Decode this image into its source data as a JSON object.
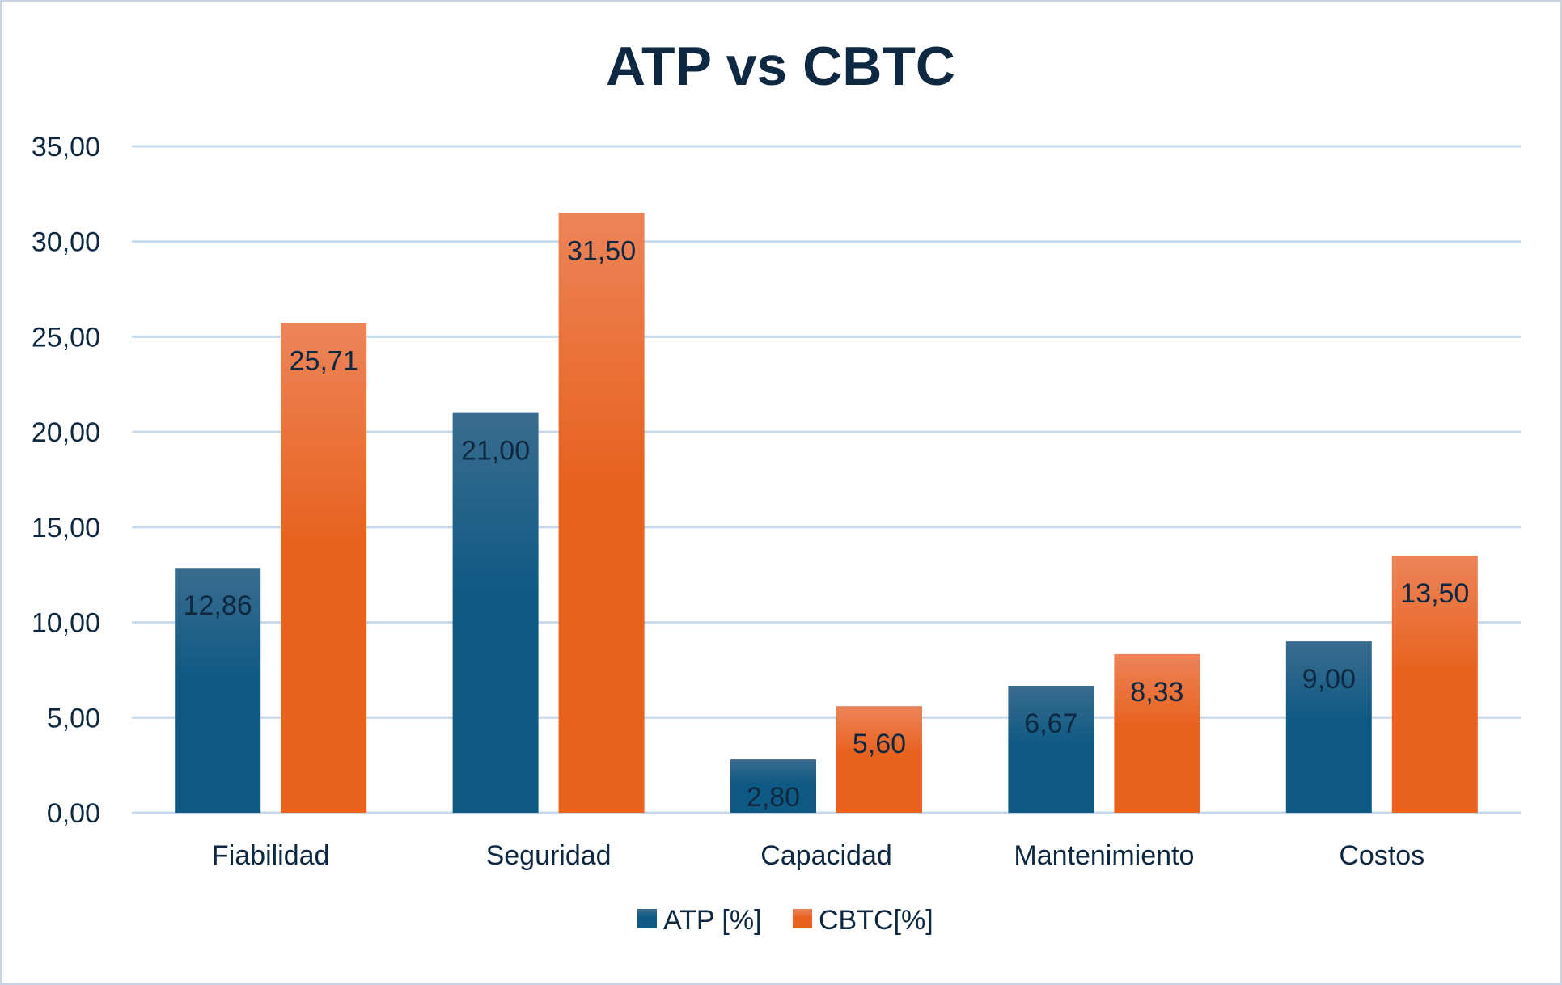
{
  "chart_data": {
    "type": "bar",
    "title": "ATP vs CBTC",
    "xlabel": "",
    "ylabel": "",
    "categories": [
      "Fiabilidad",
      "Seguridad",
      "Capacidad",
      "Mantenimiento",
      "Costos"
    ],
    "series": [
      {
        "name": "ATP [%]",
        "values": [
          12.86,
          21.0,
          2.8,
          6.67,
          9.0
        ],
        "labels": [
          "12,86",
          "21,00",
          "2,80",
          "6,67",
          "9,00"
        ],
        "color": "#0f5a84",
        "color_top": "#3a6c8e"
      },
      {
        "name": "CBTC[%]",
        "values": [
          25.71,
          31.5,
          5.6,
          8.33,
          13.5
        ],
        "labels": [
          "25,71",
          "31,50",
          "5,60",
          "8,33",
          "13,50"
        ],
        "color": "#e8621e",
        "color_top": "#ec8459"
      }
    ],
    "ylim": [
      0,
      35
    ],
    "yticks": [
      0,
      5,
      10,
      15,
      20,
      25,
      30,
      35
    ],
    "ytick_labels": [
      "0,00",
      "5,00",
      "10,00",
      "15,00",
      "20,00",
      "25,00",
      "30,00",
      "35,00"
    ],
    "grid": true,
    "gridline_color": "#c5d9ea",
    "legend_position": "bottom-center",
    "data_labels": "inside-end"
  }
}
